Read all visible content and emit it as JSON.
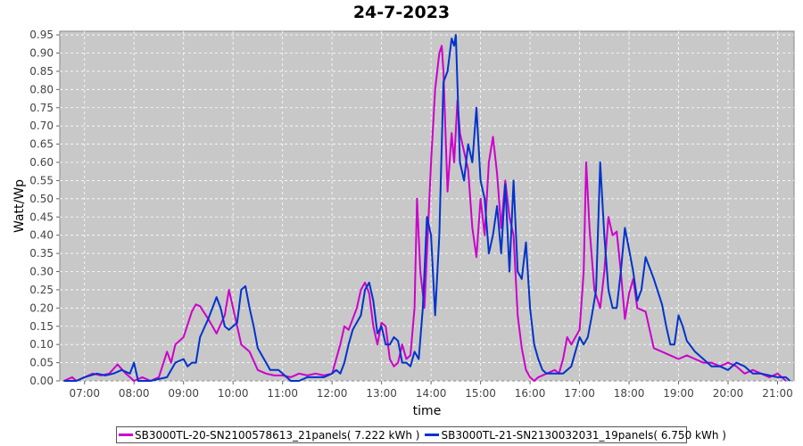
{
  "chart_data": {
    "type": "line",
    "title": "24-7-2023",
    "xlabel": "time",
    "ylabel": "Watt/Wp",
    "xlim": [
      "06:30",
      "21:20"
    ],
    "ylim": [
      0,
      0.96
    ],
    "x_ticks": [
      "07:00",
      "08:00",
      "09:00",
      "10:00",
      "11:00",
      "12:00",
      "13:00",
      "14:00",
      "15:00",
      "16:00",
      "17:00",
      "18:00",
      "19:00",
      "20:00",
      "21:00"
    ],
    "y_ticks": [
      "0.00",
      "0.05",
      "0.10",
      "0.15",
      "0.20",
      "0.25",
      "0.30",
      "0.35",
      "0.40",
      "0.45",
      "0.50",
      "0.55",
      "0.60",
      "0.65",
      "0.70",
      "0.75",
      "0.80",
      "0.85",
      "0.90",
      "0.95"
    ],
    "grid": true,
    "legend_position": "bottom",
    "background": "#c8c8c8",
    "series": [
      {
        "name": "SB3000TL-20-SN2100578613_21panels( 7.222 kWh )",
        "color": "#cc00cc",
        "points": [
          [
            "06:35",
            0.0
          ],
          [
            "06:45",
            0.01
          ],
          [
            "06:50",
            0.0
          ],
          [
            "07:00",
            0.01
          ],
          [
            "07:10",
            0.02
          ],
          [
            "07:20",
            0.015
          ],
          [
            "07:30",
            0.02
          ],
          [
            "07:40",
            0.045
          ],
          [
            "07:50",
            0.02
          ],
          [
            "08:00",
            0.0
          ],
          [
            "08:10",
            0.01
          ],
          [
            "08:20",
            0.0
          ],
          [
            "08:30",
            0.01
          ],
          [
            "08:40",
            0.08
          ],
          [
            "08:45",
            0.05
          ],
          [
            "08:50",
            0.1
          ],
          [
            "09:00",
            0.12
          ],
          [
            "09:10",
            0.19
          ],
          [
            "09:15",
            0.21
          ],
          [
            "09:20",
            0.205
          ],
          [
            "09:30",
            0.17
          ],
          [
            "09:40",
            0.13
          ],
          [
            "09:50",
            0.18
          ],
          [
            "09:55",
            0.25
          ],
          [
            "10:00",
            0.2
          ],
          [
            "10:10",
            0.1
          ],
          [
            "10:20",
            0.08
          ],
          [
            "10:30",
            0.03
          ],
          [
            "10:40",
            0.02
          ],
          [
            "10:50",
            0.015
          ],
          [
            "11:00",
            0.015
          ],
          [
            "11:10",
            0.01
          ],
          [
            "11:20",
            0.02
          ],
          [
            "11:30",
            0.015
          ],
          [
            "11:40",
            0.02
          ],
          [
            "11:50",
            0.015
          ],
          [
            "12:00",
            0.02
          ],
          [
            "12:05",
            0.06
          ],
          [
            "12:10",
            0.1
          ],
          [
            "12:15",
            0.15
          ],
          [
            "12:20",
            0.14
          ],
          [
            "12:30",
            0.2
          ],
          [
            "12:35",
            0.25
          ],
          [
            "12:40",
            0.27
          ],
          [
            "12:45",
            0.24
          ],
          [
            "12:50",
            0.15
          ],
          [
            "12:55",
            0.1
          ],
          [
            "13:00",
            0.16
          ],
          [
            "13:05",
            0.15
          ],
          [
            "13:10",
            0.06
          ],
          [
            "13:15",
            0.04
          ],
          [
            "13:20",
            0.05
          ],
          [
            "13:25",
            0.1
          ],
          [
            "13:30",
            0.06
          ],
          [
            "13:35",
            0.07
          ],
          [
            "13:40",
            0.2
          ],
          [
            "13:43",
            0.5
          ],
          [
            "13:47",
            0.3
          ],
          [
            "13:52",
            0.2
          ],
          [
            "14:00",
            0.6
          ],
          [
            "14:05",
            0.8
          ],
          [
            "14:10",
            0.9
          ],
          [
            "14:13",
            0.92
          ],
          [
            "14:15",
            0.85
          ],
          [
            "14:20",
            0.52
          ],
          [
            "14:25",
            0.68
          ],
          [
            "14:28",
            0.6
          ],
          [
            "14:32",
            0.77
          ],
          [
            "14:35",
            0.68
          ],
          [
            "14:40",
            0.63
          ],
          [
            "14:45",
            0.58
          ],
          [
            "14:50",
            0.42
          ],
          [
            "14:55",
            0.34
          ],
          [
            "15:00",
            0.5
          ],
          [
            "15:05",
            0.4
          ],
          [
            "15:10",
            0.6
          ],
          [
            "15:15",
            0.67
          ],
          [
            "15:20",
            0.57
          ],
          [
            "15:25",
            0.42
          ],
          [
            "15:30",
            0.55
          ],
          [
            "15:35",
            0.45
          ],
          [
            "15:40",
            0.4
          ],
          [
            "15:45",
            0.18
          ],
          [
            "15:50",
            0.09
          ],
          [
            "15:55",
            0.03
          ],
          [
            "16:00",
            0.01
          ],
          [
            "16:05",
            0.0
          ],
          [
            "16:10",
            0.01
          ],
          [
            "16:20",
            0.02
          ],
          [
            "16:30",
            0.03
          ],
          [
            "16:35",
            0.02
          ],
          [
            "16:40",
            0.06
          ],
          [
            "16:45",
            0.12
          ],
          [
            "16:50",
            0.1
          ],
          [
            "17:00",
            0.14
          ],
          [
            "17:05",
            0.3
          ],
          [
            "17:08",
            0.6
          ],
          [
            "17:12",
            0.42
          ],
          [
            "17:18",
            0.25
          ],
          [
            "17:25",
            0.2
          ],
          [
            "17:30",
            0.3
          ],
          [
            "17:35",
            0.45
          ],
          [
            "17:40",
            0.4
          ],
          [
            "17:45",
            0.41
          ],
          [
            "17:50",
            0.3
          ],
          [
            "17:55",
            0.17
          ],
          [
            "18:00",
            0.24
          ],
          [
            "18:05",
            0.28
          ],
          [
            "18:10",
            0.2
          ],
          [
            "18:20",
            0.19
          ],
          [
            "18:30",
            0.09
          ],
          [
            "18:40",
            0.08
          ],
          [
            "18:50",
            0.07
          ],
          [
            "19:00",
            0.06
          ],
          [
            "19:10",
            0.07
          ],
          [
            "19:20",
            0.06
          ],
          [
            "19:30",
            0.05
          ],
          [
            "19:40",
            0.05
          ],
          [
            "19:50",
            0.04
          ],
          [
            "20:00",
            0.05
          ],
          [
            "20:10",
            0.04
          ],
          [
            "20:20",
            0.02
          ],
          [
            "20:30",
            0.03
          ],
          [
            "20:40",
            0.02
          ],
          [
            "20:50",
            0.01
          ],
          [
            "21:00",
            0.02
          ],
          [
            "21:10",
            0.0
          ]
        ]
      },
      {
        "name": "SB3000TL-21-SN2130032031_19panels( 6.750 kWh )",
        "color": "#0033cc",
        "points": [
          [
            "06:35",
            0.0
          ],
          [
            "06:50",
            0.0
          ],
          [
            "07:00",
            0.01
          ],
          [
            "07:15",
            0.02
          ],
          [
            "07:25",
            0.015
          ],
          [
            "07:35",
            0.02
          ],
          [
            "07:45",
            0.03
          ],
          [
            "07:55",
            0.02
          ],
          [
            "08:00",
            0.05
          ],
          [
            "08:05",
            0.0
          ],
          [
            "08:20",
            0.0
          ],
          [
            "08:40",
            0.01
          ],
          [
            "08:50",
            0.05
          ],
          [
            "09:00",
            0.06
          ],
          [
            "09:05",
            0.04
          ],
          [
            "09:10",
            0.05
          ],
          [
            "09:15",
            0.05
          ],
          [
            "09:20",
            0.12
          ],
          [
            "09:30",
            0.17
          ],
          [
            "09:40",
            0.23
          ],
          [
            "09:45",
            0.2
          ],
          [
            "09:50",
            0.15
          ],
          [
            "09:55",
            0.14
          ],
          [
            "10:00",
            0.15
          ],
          [
            "10:05",
            0.16
          ],
          [
            "10:10",
            0.25
          ],
          [
            "10:15",
            0.26
          ],
          [
            "10:20",
            0.2
          ],
          [
            "10:25",
            0.15
          ],
          [
            "10:30",
            0.09
          ],
          [
            "10:40",
            0.05
          ],
          [
            "10:45",
            0.03
          ],
          [
            "10:55",
            0.03
          ],
          [
            "11:00",
            0.02
          ],
          [
            "11:10",
            0.0
          ],
          [
            "11:20",
            0.0
          ],
          [
            "11:30",
            0.01
          ],
          [
            "11:40",
            0.01
          ],
          [
            "11:50",
            0.01
          ],
          [
            "12:00",
            0.02
          ],
          [
            "12:05",
            0.03
          ],
          [
            "12:10",
            0.02
          ],
          [
            "12:15",
            0.05
          ],
          [
            "12:20",
            0.1
          ],
          [
            "12:25",
            0.14
          ],
          [
            "12:35",
            0.18
          ],
          [
            "12:40",
            0.25
          ],
          [
            "12:45",
            0.27
          ],
          [
            "12:50",
            0.22
          ],
          [
            "12:55",
            0.13
          ],
          [
            "13:00",
            0.15
          ],
          [
            "13:05",
            0.1
          ],
          [
            "13:10",
            0.1
          ],
          [
            "13:15",
            0.12
          ],
          [
            "13:20",
            0.11
          ],
          [
            "13:25",
            0.05
          ],
          [
            "13:30",
            0.05
          ],
          [
            "13:35",
            0.04
          ],
          [
            "13:40",
            0.08
          ],
          [
            "13:45",
            0.06
          ],
          [
            "13:50",
            0.2
          ],
          [
            "13:55",
            0.45
          ],
          [
            "14:00",
            0.4
          ],
          [
            "14:05",
            0.18
          ],
          [
            "14:10",
            0.4
          ],
          [
            "14:15",
            0.82
          ],
          [
            "14:20",
            0.85
          ],
          [
            "14:25",
            0.94
          ],
          [
            "14:28",
            0.92
          ],
          [
            "14:30",
            0.95
          ],
          [
            "14:35",
            0.6
          ],
          [
            "14:40",
            0.55
          ],
          [
            "14:45",
            0.65
          ],
          [
            "14:50",
            0.6
          ],
          [
            "14:55",
            0.75
          ],
          [
            "15:00",
            0.55
          ],
          [
            "15:05",
            0.5
          ],
          [
            "15:10",
            0.35
          ],
          [
            "15:15",
            0.4
          ],
          [
            "15:20",
            0.48
          ],
          [
            "15:25",
            0.35
          ],
          [
            "15:30",
            0.54
          ],
          [
            "15:35",
            0.3
          ],
          [
            "15:40",
            0.55
          ],
          [
            "15:45",
            0.3
          ],
          [
            "15:50",
            0.28
          ],
          [
            "15:55",
            0.38
          ],
          [
            "16:00",
            0.2
          ],
          [
            "16:05",
            0.1
          ],
          [
            "16:10",
            0.06
          ],
          [
            "16:15",
            0.03
          ],
          [
            "16:20",
            0.02
          ],
          [
            "16:30",
            0.02
          ],
          [
            "16:40",
            0.02
          ],
          [
            "16:50",
            0.04
          ],
          [
            "16:55",
            0.08
          ],
          [
            "17:00",
            0.12
          ],
          [
            "17:05",
            0.1
          ],
          [
            "17:10",
            0.12
          ],
          [
            "17:15",
            0.18
          ],
          [
            "17:20",
            0.25
          ],
          [
            "17:25",
            0.6
          ],
          [
            "17:30",
            0.4
          ],
          [
            "17:35",
            0.25
          ],
          [
            "17:40",
            0.2
          ],
          [
            "17:45",
            0.2
          ],
          [
            "17:50",
            0.3
          ],
          [
            "17:55",
            0.42
          ],
          [
            "18:00",
            0.36
          ],
          [
            "18:05",
            0.3
          ],
          [
            "18:10",
            0.22
          ],
          [
            "18:15",
            0.25
          ],
          [
            "18:20",
            0.34
          ],
          [
            "18:30",
            0.28
          ],
          [
            "18:40",
            0.21
          ],
          [
            "18:45",
            0.15
          ],
          [
            "18:50",
            0.1
          ],
          [
            "18:55",
            0.1
          ],
          [
            "19:00",
            0.18
          ],
          [
            "19:05",
            0.15
          ],
          [
            "19:10",
            0.11
          ],
          [
            "19:20",
            0.08
          ],
          [
            "19:30",
            0.06
          ],
          [
            "19:40",
            0.04
          ],
          [
            "19:50",
            0.04
          ],
          [
            "20:00",
            0.03
          ],
          [
            "20:10",
            0.05
          ],
          [
            "20:20",
            0.04
          ],
          [
            "20:30",
            0.02
          ],
          [
            "20:40",
            0.02
          ],
          [
            "20:50",
            0.015
          ],
          [
            "21:00",
            0.01
          ],
          [
            "21:10",
            0.01
          ],
          [
            "21:15",
            0.0
          ]
        ]
      }
    ]
  }
}
